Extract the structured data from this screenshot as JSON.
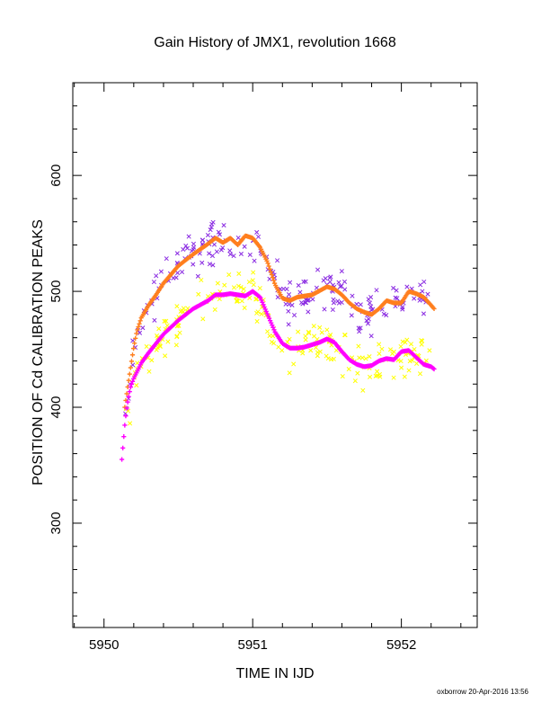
{
  "chart_data": {
    "type": "scatter",
    "title": "Gain History of JMX1, revolution 1668",
    "xlabel": "TIME IN IJD",
    "ylabel": "POSITION OF Cd CALIBRATION PEAKS",
    "xlim": [
      5949.79,
      5952.51
    ],
    "ylim": [
      210,
      680
    ],
    "x_ticks": [
      5950,
      5951,
      5952
    ],
    "y_ticks": [
      300,
      400,
      500,
      600
    ],
    "grid": false,
    "footer": "oxborrow 20-Apr-2016 13:56",
    "colors": {
      "orange": "#ff7f1e",
      "magenta": "#ff00ff",
      "purple": "#8a2be2",
      "yellow": "#ffff00"
    },
    "series": [
      {
        "key": "upper_smooth",
        "color": "#ff7f1e",
        "marker": "plus",
        "x": [
          5950.14,
          5950.16,
          5950.18,
          5950.2,
          5950.22,
          5950.25,
          5950.3,
          5950.35,
          5950.4,
          5950.5,
          5950.6,
          5950.7,
          5950.75,
          5950.8,
          5950.85,
          5950.9,
          5950.95,
          5951.0,
          5951.05,
          5951.1,
          5951.15,
          5951.2,
          5951.25,
          5951.3,
          5951.35,
          5951.4,
          5951.5,
          5951.55,
          5951.6,
          5951.65,
          5951.7,
          5951.75,
          5951.8,
          5951.85,
          5951.9,
          5951.95,
          5952.0,
          5952.05,
          5952.1,
          5952.15,
          5952.2,
          5952.22
        ],
        "y": [
          400,
          418,
          435,
          452,
          465,
          477,
          488,
          497,
          507,
          522,
          532,
          541,
          546,
          542,
          546,
          540,
          548,
          546,
          538,
          525,
          506,
          494,
          492,
          495,
          496,
          497,
          504,
          502,
          497,
          490,
          485,
          482,
          480,
          485,
          492,
          490,
          490,
          500,
          498,
          495,
          488,
          485
        ]
      },
      {
        "key": "lower_smooth",
        "color": "#ff00ff",
        "marker": "plus",
        "x": [
          5950.12,
          5950.13,
          5950.14,
          5950.15,
          5950.16,
          5950.17,
          5950.18,
          5950.2,
          5950.22,
          5950.25,
          5950.3,
          5950.35,
          5950.4,
          5950.5,
          5950.6,
          5950.7,
          5950.75,
          5950.8,
          5950.85,
          5950.9,
          5950.95,
          5951.0,
          5951.05,
          5951.1,
          5951.15,
          5951.2,
          5951.25,
          5951.3,
          5951.35,
          5951.4,
          5951.45,
          5951.5,
          5951.55,
          5951.6,
          5951.65,
          5951.7,
          5951.75,
          5951.8,
          5951.85,
          5951.9,
          5951.95,
          5952.0,
          5952.05,
          5952.1,
          5952.15,
          5952.2,
          5952.22
        ],
        "y": [
          355,
          370,
          385,
          397,
          405,
          412,
          418,
          425,
          430,
          438,
          447,
          455,
          463,
          475,
          485,
          492,
          497,
          497,
          498,
          497,
          496,
          500,
          495,
          480,
          465,
          455,
          451,
          451,
          452,
          454,
          456,
          459,
          456,
          448,
          441,
          437,
          435,
          436,
          440,
          442,
          441,
          448,
          449,
          443,
          437,
          435,
          433
        ]
      },
      {
        "key": "upper_scatter",
        "color": "#8a2be2",
        "marker": "cross",
        "trend_x": [
          5950.14,
          5950.2,
          5950.3,
          5950.4,
          5950.5,
          5950.6,
          5950.7,
          5950.8,
          5950.9,
          5951.0,
          5951.1,
          5951.2,
          5951.3,
          5951.4,
          5951.5,
          5951.6,
          5951.7,
          5951.8,
          5951.9,
          5952.0,
          5952.1,
          5952.2
        ],
        "trend_y": [
          400,
          452,
          488,
          507,
          522,
          532,
          541,
          542,
          540,
          546,
          525,
          494,
          495,
          497,
          504,
          497,
          485,
          480,
          492,
          490,
          498,
          488
        ],
        "spread": 14,
        "count": 200
      },
      {
        "key": "lower_scatter",
        "color": "#ffff00",
        "marker": "cross",
        "trend_x": [
          5950.13,
          5950.2,
          5950.3,
          5950.4,
          5950.5,
          5950.6,
          5950.7,
          5950.8,
          5950.9,
          5951.0,
          5951.1,
          5951.2,
          5951.3,
          5951.4,
          5951.5,
          5951.6,
          5951.7,
          5951.8,
          5951.9,
          5952.0,
          5952.1,
          5952.2
        ],
        "trend_y": [
          370,
          425,
          447,
          463,
          475,
          485,
          492,
          497,
          497,
          500,
          480,
          455,
          451,
          454,
          459,
          448,
          437,
          436,
          442,
          448,
          443,
          435
        ],
        "spread": 14,
        "count": 200
      }
    ]
  }
}
